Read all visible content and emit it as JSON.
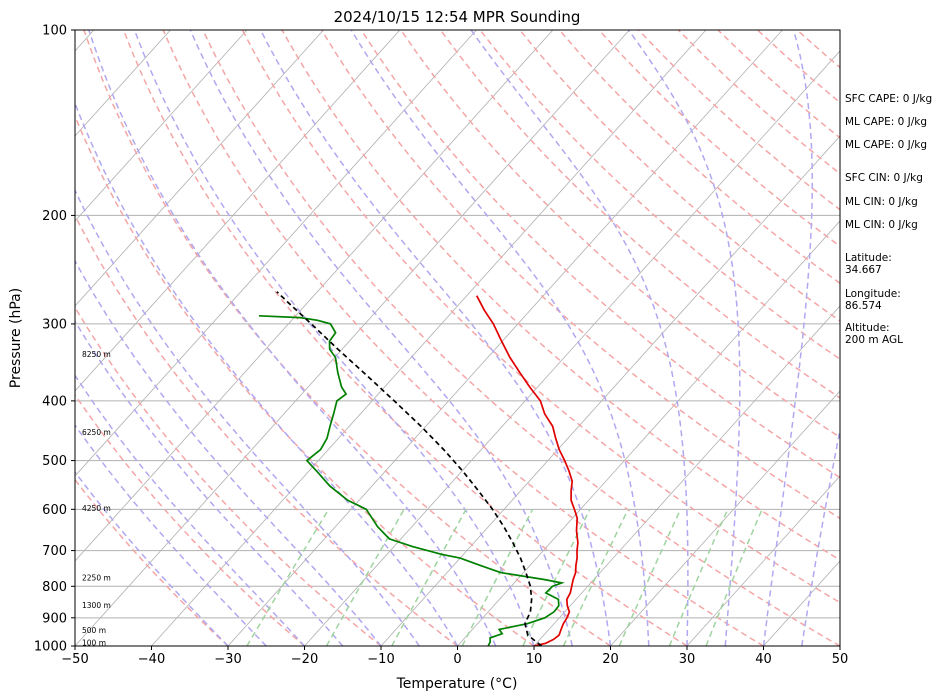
{
  "chart_data": {
    "type": "line",
    "title": "2024/10/15 12:54 MPR Sounding",
    "xlabel": "Temperature (°C)",
    "ylabel": "Pressure (hPa)",
    "xlim": [
      -50,
      50
    ],
    "ylim": [
      1000,
      100
    ],
    "y_scale": "log",
    "skew": "skew-T log-p",
    "x_ticks": [
      -50,
      -40,
      -30,
      -20,
      -10,
      0,
      10,
      20,
      30,
      40,
      50
    ],
    "x_tick_labels": [
      "−50",
      "−40",
      "−30",
      "−20",
      "−10",
      "0",
      "10",
      "20",
      "30",
      "40",
      "50"
    ],
    "y_ticks": [
      1000,
      900,
      800,
      700,
      600,
      500,
      400,
      300,
      200,
      100
    ],
    "y_tick_labels": [
      "1000",
      "900",
      "800",
      "700",
      "600",
      "500",
      "400",
      "300",
      "200",
      "100"
    ],
    "series": [
      {
        "color": "#e00000",
        "style": "solid",
        "points": [
          [
            1000,
            10
          ],
          [
            990,
            11.2
          ],
          [
            975,
            11.8
          ],
          [
            960,
            12
          ],
          [
            940,
            11.6
          ],
          [
            920,
            11.2
          ],
          [
            900,
            11
          ],
          [
            880,
            10.6
          ],
          [
            860,
            9.6
          ],
          [
            840,
            8.8
          ],
          [
            820,
            8.5
          ],
          [
            800,
            7.9
          ],
          [
            780,
            7.3
          ],
          [
            760,
            6.8
          ],
          [
            740,
            6.0
          ],
          [
            720,
            5.3
          ],
          [
            700,
            4.4
          ],
          [
            680,
            3.6
          ],
          [
            650,
            2.0
          ],
          [
            620,
            0.6
          ],
          [
            600,
            -0.8
          ],
          [
            580,
            -2.3
          ],
          [
            560,
            -3.4
          ],
          [
            540,
            -4.4
          ],
          [
            520,
            -6.0
          ],
          [
            500,
            -7.8
          ],
          [
            480,
            -9.8
          ],
          [
            460,
            -11.6
          ],
          [
            440,
            -13.4
          ],
          [
            420,
            -15.9
          ],
          [
            400,
            -18.0
          ],
          [
            380,
            -21.0
          ],
          [
            360,
            -24.0
          ],
          [
            340,
            -27.1
          ],
          [
            320,
            -30.1
          ],
          [
            300,
            -33.2
          ],
          [
            285,
            -36.0
          ],
          [
            270,
            -38.7
          ]
        ]
      },
      {
        "color": "#008000",
        "style": "solid",
        "points": [
          [
            1000,
            4
          ],
          [
            985,
            3.8
          ],
          [
            970,
            3.3
          ],
          [
            955,
            4.4
          ],
          [
            940,
            3.5
          ],
          [
            930,
            5.0
          ],
          [
            920,
            6.5
          ],
          [
            900,
            8.1
          ],
          [
            880,
            8.6
          ],
          [
            860,
            8.5
          ],
          [
            840,
            7.7
          ],
          [
            820,
            5.3
          ],
          [
            800,
            5.4
          ],
          [
            790,
            6.2
          ],
          [
            780,
            3.5
          ],
          [
            760,
            -3.0
          ],
          [
            740,
            -6.5
          ],
          [
            720,
            -10.0
          ],
          [
            710,
            -12.8
          ],
          [
            690,
            -17.5
          ],
          [
            670,
            -21.5
          ],
          [
            640,
            -24.5
          ],
          [
            600,
            -28.0
          ],
          [
            580,
            -31.5
          ],
          [
            550,
            -35.5
          ],
          [
            520,
            -39.0
          ],
          [
            500,
            -41.5
          ],
          [
            480,
            -41.0
          ],
          [
            460,
            -41.5
          ],
          [
            440,
            -42.5
          ],
          [
            420,
            -43.5
          ],
          [
            400,
            -44.6
          ],
          [
            390,
            -44.2
          ],
          [
            380,
            -45.6
          ],
          [
            360,
            -47.8
          ],
          [
            340,
            -49.9
          ],
          [
            330,
            -51.6
          ],
          [
            320,
            -52.6
          ],
          [
            310,
            -52.8
          ],
          [
            300,
            -54.5
          ],
          [
            296,
            -56.6
          ],
          [
            293,
            -59.2
          ],
          [
            291,
            -64.8
          ]
        ]
      },
      {
        "color": "#000000",
        "style": "dashed",
        "points": [
          [
            1000,
            11
          ],
          [
            960,
            7.9
          ],
          [
            920,
            6.2
          ],
          [
            880,
            5.5
          ],
          [
            840,
            4.2
          ],
          [
            800,
            2.5
          ],
          [
            760,
            0.3
          ],
          [
            720,
            -2.1
          ],
          [
            680,
            -4.9
          ],
          [
            640,
            -8.0
          ],
          [
            600,
            -11.5
          ],
          [
            560,
            -15.5
          ],
          [
            520,
            -19.9
          ],
          [
            480,
            -24.9
          ],
          [
            440,
            -30.6
          ],
          [
            400,
            -37.1
          ],
          [
            360,
            -44.4
          ],
          [
            330,
            -50.5
          ],
          [
            300,
            -57.0
          ],
          [
            280,
            -61.8
          ],
          [
            266,
            -65.3
          ]
        ]
      }
    ],
    "height_labels": [
      "100 m",
      "500 m",
      "1300 m",
      "2250 m",
      "4250 m",
      "6250 m",
      "8250 m"
    ],
    "height_label_pressures": [
      1000,
      955,
      870,
      785,
      605,
      455,
      340
    ]
  },
  "indices": {
    "sfc_cape": "SFC CAPE: 0 J/kg",
    "ml_cape_1": "ML CAPE: 0 J/kg",
    "ml_cape_2": "ML CAPE: 0 J/kg",
    "sfc_cin": "SFC CIN: 0 J/kg",
    "ml_cin_1": "ML CIN: 0 J/kg",
    "ml_cin_2": "ML CIN: 0 J/kg",
    "latitude": "Latitude:\n34.667",
    "longitude": "Longitude:\n86.574",
    "altitude": "Altitude:\n200 m AGL"
  },
  "colors": {
    "isotherm": "#b0b0b0",
    "dry_adiabat": "#f4a6a6",
    "moist_adiabat": "#b0a8f0",
    "mixing_ratio": "#9fd39f"
  }
}
